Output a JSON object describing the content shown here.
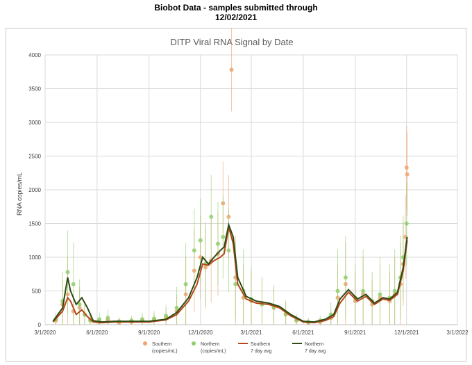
{
  "header": {
    "line1": "Biobot Data - samples submitted through",
    "line2": "12/02/2021"
  },
  "chart_data": {
    "type": "scatter",
    "title": "DITP Viral RNA Signal by Date",
    "xlabel": "",
    "ylabel": "RNA copies/mL",
    "ylim": [
      0,
      4000
    ],
    "xlim": [
      "2020-03-01",
      "2022-03-01"
    ],
    "grid": true,
    "legend_position": "bottom",
    "x_ticks": [
      "3/1/2020",
      "6/1/2020",
      "9/1/2020",
      "12/1/2020",
      "3/1/2021",
      "6/1/2021",
      "9/1/2021",
      "12/1/2021",
      "3/1/2022"
    ],
    "y_ticks": [
      "0",
      "500",
      "1000",
      "1500",
      "2000",
      "2500",
      "3000",
      "3500",
      "4000"
    ],
    "colors": {
      "southern_points": "#f0a36e",
      "northern_points": "#8fcf6a",
      "southern_avg": "#b5471b",
      "northern_avg": "#2e4a12"
    },
    "series": [
      {
        "name": "Southern (copies/mL)",
        "kind": "points",
        "x": [
          "2020-03-20",
          "2020-04-01",
          "2020-04-10",
          "2020-04-20",
          "2020-05-01",
          "2020-05-10",
          "2020-05-20",
          "2020-06-05",
          "2020-06-20",
          "2020-07-10",
          "2020-08-01",
          "2020-08-20",
          "2020-09-10",
          "2020-10-01",
          "2020-10-20",
          "2020-11-05",
          "2020-11-20",
          "2020-12-01",
          "2020-12-10",
          "2020-12-20",
          "2021-01-01",
          "2021-01-10",
          "2021-01-20",
          "2021-01-25",
          "2021-02-01",
          "2021-02-15",
          "2021-03-01",
          "2021-03-20",
          "2021-04-10",
          "2021-05-01",
          "2021-05-20",
          "2021-06-10",
          "2021-07-01",
          "2021-07-20",
          "2021-08-01",
          "2021-08-15",
          "2021-09-01",
          "2021-09-15",
          "2021-10-01",
          "2021-10-15",
          "2021-11-01",
          "2021-11-10",
          "2021-11-20",
          "2021-11-25",
          "2021-11-29",
          "2021-12-01",
          "2021-12-02"
        ],
        "y": [
          60,
          300,
          450,
          200,
          250,
          150,
          80,
          40,
          70,
          30,
          40,
          60,
          70,
          110,
          200,
          450,
          800,
          1000,
          850,
          950,
          1050,
          1800,
          1600,
          3780,
          700,
          400,
          350,
          320,
          250,
          150,
          60,
          30,
          40,
          100,
          400,
          600,
          350,
          450,
          300,
          400,
          350,
          450,
          600,
          900,
          1300,
          2330,
          2230
        ]
      },
      {
        "name": "Northern (copies/mL)",
        "kind": "points",
        "x": [
          "2020-03-20",
          "2020-04-01",
          "2020-04-10",
          "2020-04-20",
          "2020-05-01",
          "2020-05-10",
          "2020-05-20",
          "2020-06-05",
          "2020-06-20",
          "2020-07-10",
          "2020-08-01",
          "2020-08-20",
          "2020-09-10",
          "2020-10-01",
          "2020-10-20",
          "2020-11-05",
          "2020-11-20",
          "2020-12-01",
          "2020-12-10",
          "2020-12-20",
          "2021-01-01",
          "2021-01-10",
          "2021-01-20",
          "2021-02-01",
          "2021-02-15",
          "2021-03-01",
          "2021-03-20",
          "2021-04-10",
          "2021-05-01",
          "2021-05-20",
          "2021-06-10",
          "2021-07-01",
          "2021-07-20",
          "2021-08-01",
          "2021-08-15",
          "2021-09-01",
          "2021-09-15",
          "2021-10-01",
          "2021-10-15",
          "2021-11-01",
          "2021-11-10",
          "2021-11-20",
          "2021-11-25",
          "2021-12-01"
        ],
        "y": [
          80,
          350,
          780,
          600,
          300,
          150,
          60,
          80,
          100,
          50,
          60,
          80,
          90,
          130,
          250,
          600,
          1100,
          1250,
          900,
          1600,
          1200,
          1300,
          1100,
          600,
          500,
          380,
          300,
          260,
          160,
          70,
          40,
          60,
          150,
          500,
          700,
          400,
          500,
          350,
          450,
          400,
          500,
          700,
          1000,
          1500
        ]
      },
      {
        "name": "Southern 7 day avg",
        "kind": "line",
        "x": [
          "2020-03-15",
          "2020-04-01",
          "2020-04-10",
          "2020-04-15",
          "2020-04-25",
          "2020-05-05",
          "2020-05-15",
          "2020-05-25",
          "2020-06-10",
          "2020-07-01",
          "2020-08-01",
          "2020-09-01",
          "2020-10-01",
          "2020-10-20",
          "2020-11-10",
          "2020-11-25",
          "2020-12-05",
          "2020-12-15",
          "2020-12-25",
          "2021-01-05",
          "2021-01-12",
          "2021-01-20",
          "2021-01-28",
          "2021-02-05",
          "2021-02-20",
          "2021-03-10",
          "2021-04-01",
          "2021-04-20",
          "2021-05-10",
          "2021-06-01",
          "2021-06-20",
          "2021-07-10",
          "2021-07-25",
          "2021-08-05",
          "2021-08-20",
          "2021-09-05",
          "2021-09-20",
          "2021-10-05",
          "2021-10-20",
          "2021-11-01",
          "2021-11-15",
          "2021-11-25",
          "2021-12-02"
        ],
        "y": [
          40,
          200,
          400,
          350,
          150,
          220,
          120,
          40,
          30,
          40,
          40,
          40,
          70,
          150,
          350,
          600,
          900,
          880,
          950,
          1000,
          1050,
          1450,
          1200,
          600,
          380,
          320,
          300,
          250,
          130,
          40,
          30,
          60,
          120,
          320,
          480,
          350,
          420,
          300,
          380,
          360,
          450,
          800,
          1250
        ]
      },
      {
        "name": "Northern 7 day avg",
        "kind": "line",
        "x": [
          "2020-03-15",
          "2020-04-01",
          "2020-04-10",
          "2020-04-15",
          "2020-04-25",
          "2020-05-05",
          "2020-05-15",
          "2020-05-25",
          "2020-06-10",
          "2020-07-01",
          "2020-08-01",
          "2020-09-01",
          "2020-10-01",
          "2020-10-20",
          "2020-11-10",
          "2020-11-25",
          "2020-12-05",
          "2020-12-15",
          "2020-12-25",
          "2021-01-05",
          "2021-01-12",
          "2021-01-20",
          "2021-01-28",
          "2021-02-05",
          "2021-02-20",
          "2021-03-10",
          "2021-04-01",
          "2021-04-20",
          "2021-05-10",
          "2021-06-01",
          "2021-06-20",
          "2021-07-10",
          "2021-07-25",
          "2021-08-05",
          "2021-08-20",
          "2021-09-05",
          "2021-09-20",
          "2021-10-05",
          "2021-10-20",
          "2021-11-01",
          "2021-11-15",
          "2021-11-25",
          "2021-12-02"
        ],
        "y": [
          50,
          250,
          700,
          500,
          300,
          400,
          250,
          60,
          40,
          50,
          50,
          50,
          80,
          180,
          400,
          700,
          1000,
          900,
          1000,
          1100,
          1150,
          1480,
          1300,
          700,
          420,
          350,
          320,
          270,
          150,
          50,
          40,
          80,
          150,
          380,
          520,
          380,
          450,
          320,
          400,
          380,
          480,
          850,
          1300
        ]
      }
    ]
  }
}
